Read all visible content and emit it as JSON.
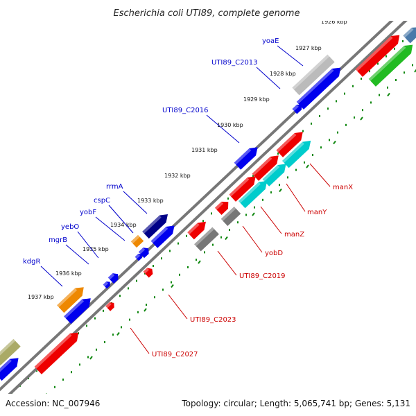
{
  "title": "Escherichia coli UTI89, complete genome",
  "footer": {
    "accession": "Accession: NC_007946",
    "summary": "Topology: circular; Length: 5,065,741 bp; Genes: 5,131"
  },
  "colors": {
    "red": "#ee0000",
    "blue": "#0000ee",
    "green": "#22bb22",
    "grey": "#9a9a9a",
    "cyan": "#00cccc",
    "orange": "#ee8800",
    "navy": "#000088",
    "olive": "#aaaa66",
    "silver": "#bbbbbb",
    "tick_green": "#118811",
    "backbone": "#777777",
    "label_blue": "#0000cc",
    "label_red": "#cc0000"
  },
  "scale": {
    "labels": [
      "1926 kbp",
      "1927 kbp",
      "1928 kbp",
      "1929 kbp",
      "1930 kbp",
      "1931 kbp",
      "1932 kbp",
      "1933 kbp",
      "1934 kbp",
      "1935 kbp",
      "1936 kbp",
      "1937 kbp"
    ]
  },
  "gene_labels": [
    {
      "text": "yoaE",
      "color": "blue"
    },
    {
      "text": "UTI89_C2013",
      "color": "blue"
    },
    {
      "text": "UTI89_C2016",
      "color": "blue"
    },
    {
      "text": "rrmA",
      "color": "blue"
    },
    {
      "text": "cspC",
      "color": "blue"
    },
    {
      "text": "yobF",
      "color": "blue"
    },
    {
      "text": "yebO",
      "color": "blue"
    },
    {
      "text": "mgrB",
      "color": "blue"
    },
    {
      "text": "kdgR",
      "color": "blue"
    },
    {
      "text": "manX",
      "color": "red"
    },
    {
      "text": "manY",
      "color": "red"
    },
    {
      "text": "manZ",
      "color": "red"
    },
    {
      "text": "yobD",
      "color": "red"
    },
    {
      "text": "UTI89_C2019",
      "color": "red"
    },
    {
      "text": "UTI89_C2023",
      "color": "red"
    },
    {
      "text": "UTI89_C2027",
      "color": "red"
    }
  ],
  "features": [
    {
      "ring": "outer2",
      "color": "blue",
      "dir": 1,
      "tick": 2
    },
    {
      "ring": "outer2",
      "color": "silver",
      "dir": 0,
      "tick": 3
    },
    {
      "ring": "outer2",
      "color": "blue",
      "dir": 1,
      "tick": 5
    },
    {
      "ring": "outer2",
      "color": "navy",
      "dir": 1,
      "tick": 7
    },
    {
      "ring": "outer2",
      "color": "silver",
      "dir": 0,
      "tick": 7
    },
    {
      "ring": "outer2",
      "color": "orange",
      "dir": 1,
      "tick": 10
    },
    {
      "ring": "outer2",
      "color": "olive",
      "dir": 0,
      "tick": 11
    }
  ]
}
